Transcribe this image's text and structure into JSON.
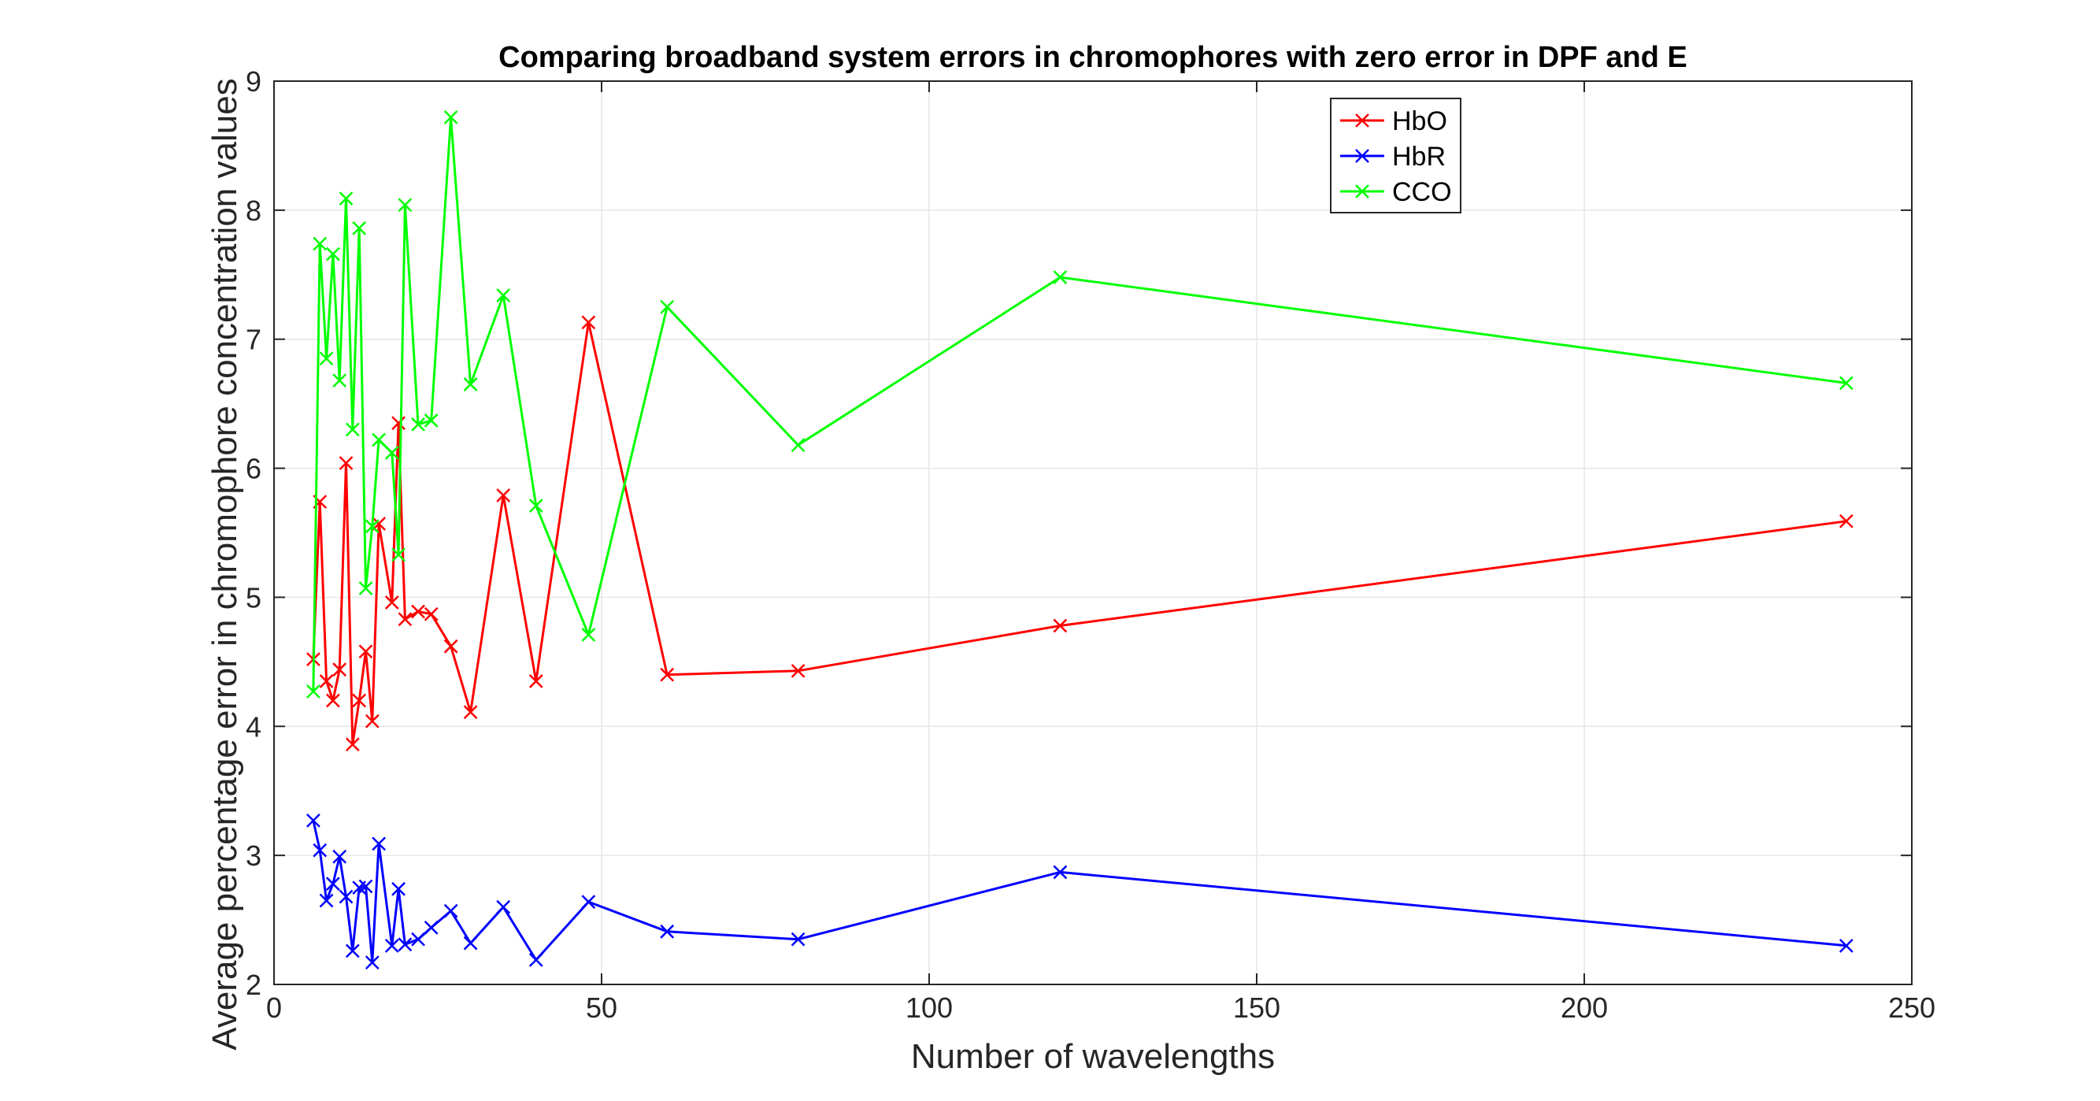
{
  "chart_data": {
    "type": "line",
    "title": "Comparing broadband system errors in chromophores with zero error in DPF and E",
    "xlabel": "Number of wavelengths",
    "ylabel": "Average percentage error in chromophore concentration values",
    "xlim": [
      0,
      250
    ],
    "ylim": [
      2,
      9
    ],
    "xticks": [
      0,
      50,
      100,
      150,
      200,
      250
    ],
    "yticks": [
      2,
      3,
      4,
      5,
      6,
      7,
      8,
      9
    ],
    "grid": true,
    "legend_position": "top-right",
    "marker": "x",
    "x": [
      6,
      7,
      8,
      9,
      10,
      11,
      12,
      13,
      14,
      15,
      16,
      18,
      19,
      20,
      22,
      24,
      27,
      30,
      35,
      40,
      48,
      60,
      80,
      120,
      240
    ],
    "series": [
      {
        "name": "HbO",
        "color": "#ff0000",
        "values": [
          4.52,
          5.74,
          4.35,
          4.2,
          4.44,
          6.04,
          3.86,
          4.2,
          4.58,
          4.04,
          5.57,
          4.96,
          6.35,
          4.83,
          4.89,
          4.87,
          4.62,
          4.11,
          5.79,
          4.35,
          7.13,
          4.4,
          4.43,
          4.78,
          5.59
        ]
      },
      {
        "name": "HbR",
        "color": "#0000ff",
        "values": [
          3.27,
          3.04,
          2.65,
          2.78,
          2.99,
          2.68,
          2.26,
          2.75,
          2.76,
          2.17,
          3.09,
          2.3,
          2.74,
          2.31,
          2.35,
          2.44,
          2.57,
          2.32,
          2.6,
          2.19,
          2.64,
          2.41,
          2.35,
          2.87,
          2.3
        ]
      },
      {
        "name": "CCO",
        "color": "#00ff00",
        "values": [
          4.27,
          7.74,
          6.85,
          7.66,
          6.68,
          8.09,
          6.3,
          7.86,
          5.07,
          5.55,
          6.22,
          6.12,
          5.33,
          8.04,
          6.34,
          6.37,
          8.72,
          6.65,
          7.34,
          5.71,
          4.71,
          7.25,
          6.18,
          7.48,
          6.66
        ]
      }
    ]
  }
}
